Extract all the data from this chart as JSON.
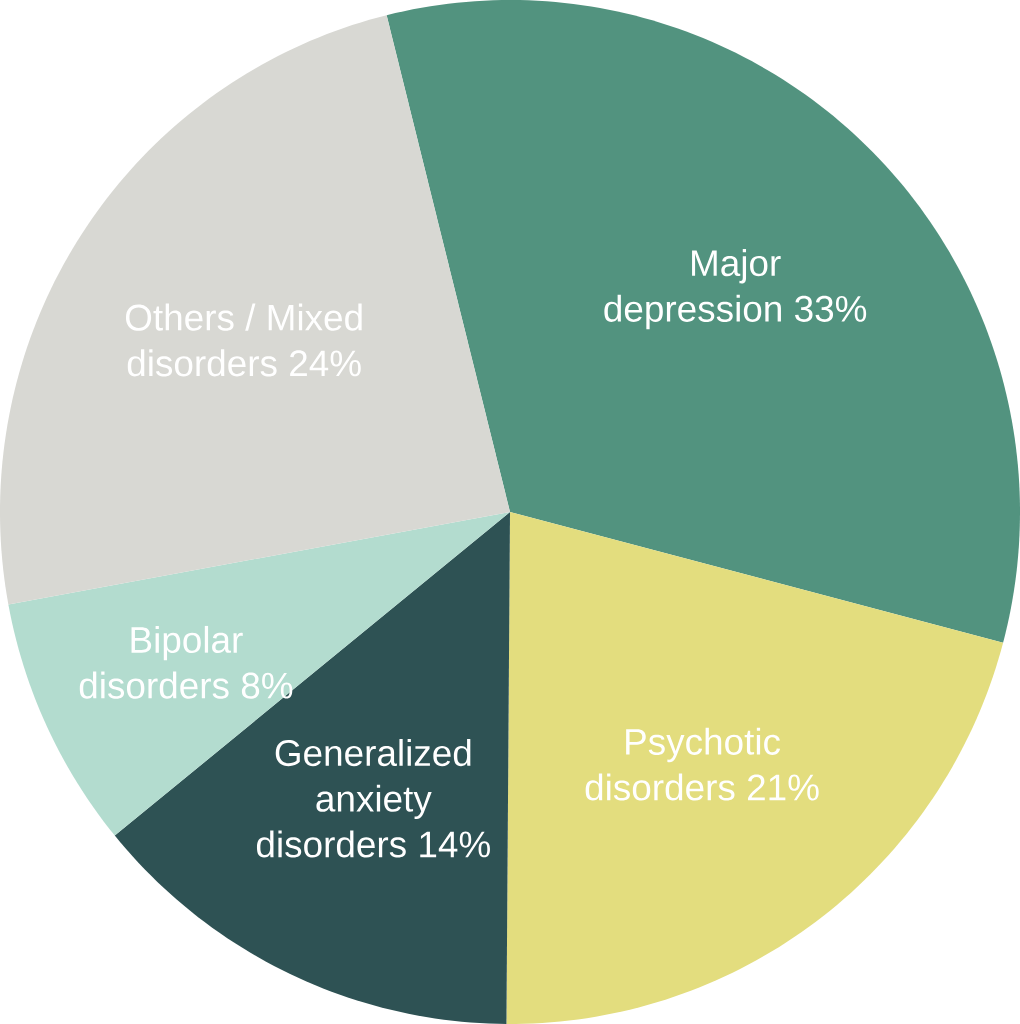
{
  "chart_data": {
    "type": "pie",
    "categories": [
      "Major depression",
      "Psychotic disorders",
      "Generalized anxiety disorders",
      "Bipolar disorders",
      "Others / Mixed disorders"
    ],
    "values": [
      33,
      21,
      14,
      8,
      24
    ],
    "value_labels": [
      "33%",
      "21%",
      "14%",
      "8%",
      "24%"
    ],
    "colors": [
      "#52937f",
      "#e3dd7e",
      "#2e5254",
      "#b3dccf",
      "#d8d8d3"
    ]
  }
}
